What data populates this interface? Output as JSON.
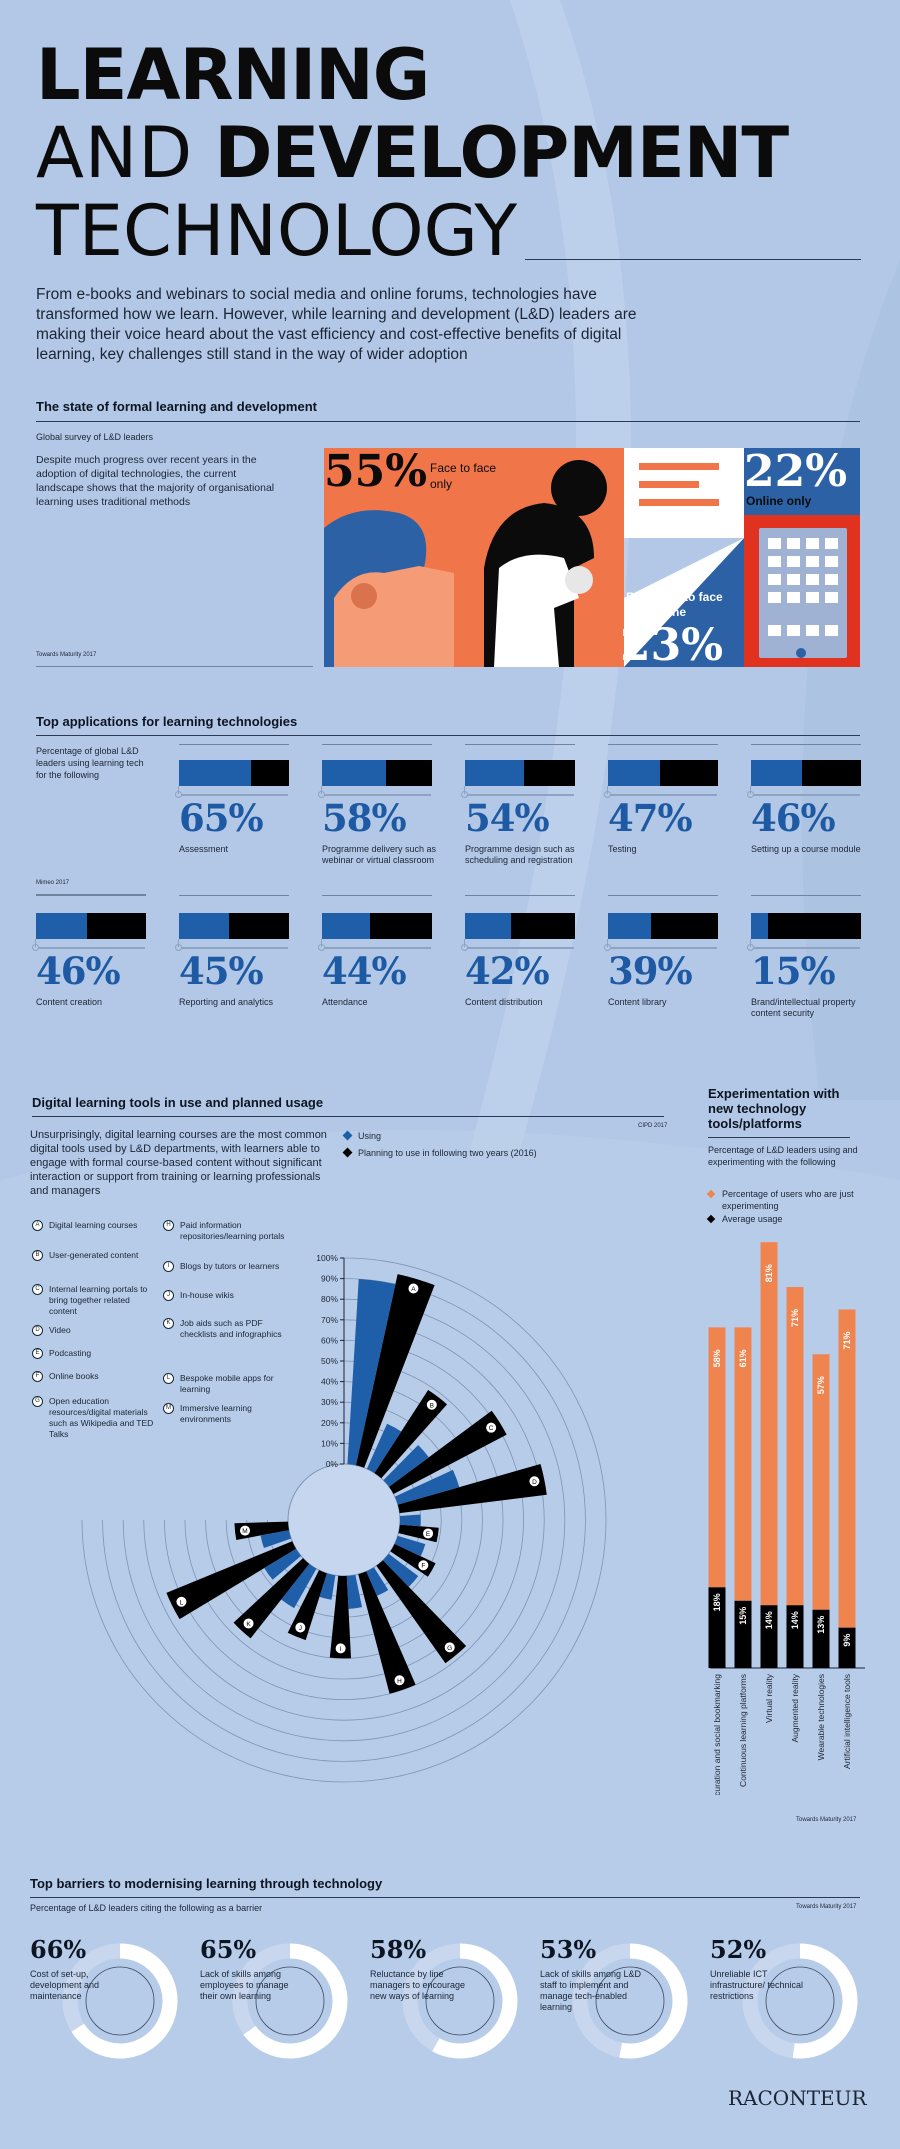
{
  "title": {
    "line1": "LEARNING",
    "line2a": "AND",
    "line2b": "DEVELOPMENT",
    "line3": "TECHNOLOGY"
  },
  "intro": "From e-books and webinars to social media and online forums, technologies have transformed how we learn. However, while learning and development (L&D) leaders are making their voice heard about the vast efficiency and cost-effective benefits of digital learning, key challenges still stand in the way of wider adoption",
  "state": {
    "heading": "The state of formal learning and development",
    "subtitle": "Global survey of L&D leaders",
    "body": "Despite much progress over recent years in the adoption of digital technologies, the current landscape shows that the majority of organisational learning uses traditional methods",
    "source": "Towards Maturity 2017",
    "stats": [
      {
        "value": "55%",
        "label": "Face to face only"
      },
      {
        "value": "22%",
        "label": "Online only"
      },
      {
        "value": "23%",
        "label": "Both face to face and online"
      }
    ],
    "colors": {
      "orange": "#f0764a",
      "blue": "#2c62a5",
      "red": "#e0321f",
      "skin": "#f59c76",
      "black": "#0b0b0b"
    }
  },
  "apps": {
    "heading": "Top applications for learning technologies",
    "subtitle": "Percentage of global L&D leaders using learning tech for the following",
    "source": "Mimeo 2017",
    "items": [
      {
        "value": 65,
        "label": "65%",
        "name": "Assessment"
      },
      {
        "value": 58,
        "label": "58%",
        "name": "Programme delivery such as webinar or virtual classroom"
      },
      {
        "value": 54,
        "label": "54%",
        "name": "Programme design such as scheduling and registration"
      },
      {
        "value": 47,
        "label": "47%",
        "name": "Testing"
      },
      {
        "value": 46,
        "label": "46%",
        "name": "Setting up a course module"
      },
      {
        "value": 46,
        "label": "46%",
        "name": "Content creation"
      },
      {
        "value": 45,
        "label": "45%",
        "name": "Reporting and analytics"
      },
      {
        "value": 44,
        "label": "44%",
        "name": "Attendance"
      },
      {
        "value": 42,
        "label": "42%",
        "name": "Content distribution"
      },
      {
        "value": 39,
        "label": "39%",
        "name": "Content library"
      },
      {
        "value": 15,
        "label": "15%",
        "name": "Brand/intellectual property content security"
      }
    ]
  },
  "tools": {
    "heading": "Digital learning tools in use and planned usage",
    "body": "Unsurprisingly, digital learning courses are the most common digital tools used by L&D departments, with learners able to engage with formal course-based content without significant interaction or support from training or learning professionals and managers",
    "source": "CIPD 2017",
    "legend_using": "Using",
    "legend_planning": "Planning to use in following two years (2016)",
    "items": [
      {
        "letter": "A",
        "name": "Digital learning courses"
      },
      {
        "letter": "B",
        "name": "User-generated content"
      },
      {
        "letter": "C",
        "name": "Internal learning portals to bring together related content"
      },
      {
        "letter": "D",
        "name": "Video"
      },
      {
        "letter": "E",
        "name": "Podcasting"
      },
      {
        "letter": "F",
        "name": "Online books"
      },
      {
        "letter": "G",
        "name": "Open education resources/digital materials such as Wikipedia and TED Talks"
      },
      {
        "letter": "H",
        "name": "Paid information repositories/learning portals"
      },
      {
        "letter": "I",
        "name": "Blogs by tutors or learners"
      },
      {
        "letter": "J",
        "name": "In-house wikis"
      },
      {
        "letter": "K",
        "name": "Job aids such as PDF checklists and infographics"
      },
      {
        "letter": "L",
        "name": "Bespoke mobile apps for learning"
      },
      {
        "letter": "M",
        "name": "Immersive learning environments"
      }
    ],
    "axis": [
      "100%",
      "90%",
      "80%",
      "70%",
      "60%",
      "50%",
      "40%",
      "30%",
      "20%",
      "10%",
      "0%"
    ]
  },
  "chart_data": {
    "type": "bar",
    "title": "Digital learning tools in use and planned usage",
    "categories": [
      "A",
      "B",
      "C",
      "D",
      "E",
      "F",
      "G",
      "H",
      "I",
      "J",
      "K",
      "L",
      "M"
    ],
    "ylim": [
      0,
      100
    ],
    "series": [
      {
        "name": "Using",
        "values": [
          90,
          24,
          24,
          31,
          10,
          14,
          18,
          13,
          16,
          12,
          22,
          18,
          14
        ]
      },
      {
        "name": "Planning to use in following two years (2016)",
        "values": [
          95,
          48,
          62,
          72,
          19,
          22,
          58,
          60,
          40,
          34,
          46,
          66,
          26
        ]
      }
    ]
  },
  "exp": {
    "heading": "Experimentation with new technology tools/platforms",
    "subtitle": "Percentage of L&D leaders using and experimenting with the following",
    "legend_exp": "Percentage of users who are just experimenting",
    "legend_avg": "Average usage",
    "source": "Towards Maturity 2017",
    "categories": [
      "Feeds/curation and social bookmarking",
      "Continuous learning platforms",
      "Virtual reality",
      "Augmented reality",
      "Wearable technologies",
      "Artificial intelligence tools"
    ],
    "experimenting": [
      58,
      61,
      81,
      71,
      57,
      71
    ],
    "average": [
      18,
      15,
      14,
      14,
      13,
      9
    ]
  },
  "barriers": {
    "heading": "Top barriers to modernising learning through technology",
    "subtitle": "Percentage of L&D leaders citing the following as a barrier",
    "source": "Towards Maturity 2017",
    "items": [
      {
        "value": 66,
        "label": "66%",
        "name": "Cost of set-up, development and maintenance"
      },
      {
        "value": 65,
        "label": "65%",
        "name": "Lack of skills among employees to manage their own learning"
      },
      {
        "value": 58,
        "label": "58%",
        "name": "Reluctance by line managers to encourage new ways of learning"
      },
      {
        "value": 53,
        "label": "53%",
        "name": "Lack of skills among L&D staff to implement and manage tech-enabled learning"
      },
      {
        "value": 52,
        "label": "52%",
        "name": "Unreliable ICT infrastructure/ technical restrictions"
      }
    ]
  },
  "brand": "RACONTEUR",
  "colors": {
    "background": "#b3c8e6",
    "blue": "#1f5ea8",
    "orange": "#f0844f",
    "black": "#000000"
  }
}
